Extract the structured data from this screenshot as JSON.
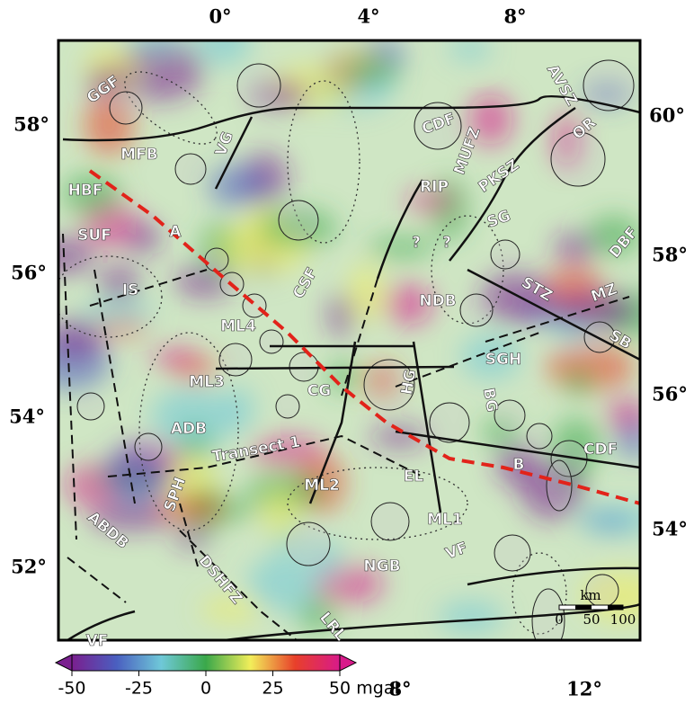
{
  "lon_top": [
    "0°",
    "4°",
    "8°"
  ],
  "lat_left": [
    "58°",
    "56°",
    "54°",
    "52°"
  ],
  "lat_right": [
    "60°",
    "58°",
    "56°",
    "54°"
  ],
  "lon_bottom": [
    "8°",
    "12°"
  ],
  "map_labels": [
    "GGF",
    "MFB",
    "VG",
    "HBF",
    "A",
    "SUF",
    "IS",
    "CSF",
    "ML4",
    "ML3",
    "CG",
    "ADB",
    "Transect 1",
    "SPH",
    "ABDB",
    "DSHFZ",
    "VF",
    "LRL",
    "NGB",
    "ML2",
    "EL",
    "ML1",
    "HG",
    "BG",
    "SGH",
    "B",
    "CDF",
    "NDB",
    "STZ",
    "MZ",
    "SB",
    "DBF",
    "SG",
    "PKSZ",
    "RIP",
    "?",
    "?",
    "MUFZ",
    "CDF",
    "AVSZ",
    "OR",
    "VF"
  ],
  "scale_bar": {
    "unit": "km",
    "labels": [
      "0",
      "50",
      "100"
    ]
  },
  "colorbar": {
    "range": [
      -50,
      50
    ],
    "ticks": [
      -50,
      -25,
      0,
      25,
      50
    ],
    "unit": "mgal",
    "colors": [
      "#7a1f8f",
      "#4a5fc0",
      "#6fc8d8",
      "#3aa84a",
      "#f2ee5a",
      "#e8402a",
      "#d81a8a"
    ]
  }
}
